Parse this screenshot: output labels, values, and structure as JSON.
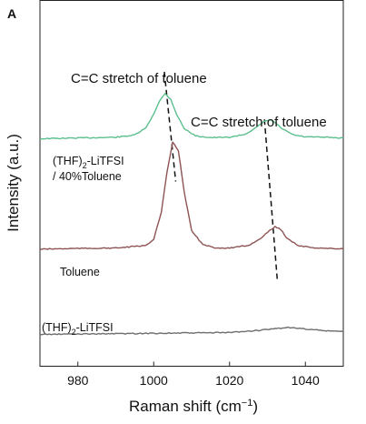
{
  "panel_label": "A",
  "chart_data": {
    "type": "line",
    "xlabel": "Raman shift (cm",
    "xlabel_sup": "−1",
    "xlabel_end": ")",
    "ylabel": "Intensity (a.u.)",
    "xlim": [
      970,
      1050
    ],
    "ylim": [
      0,
      1
    ],
    "xticks": [
      "980",
      "1000",
      "1020",
      "1040"
    ],
    "xtick_values": [
      980,
      1000,
      1020,
      1040
    ],
    "y_ticks_shown": false,
    "grid": false,
    "annotations": [
      "C=C stretch of toluene",
      "C=C stretch of toluene"
    ],
    "series": [
      {
        "name_lines": [
          {
            "pre": "(THF)",
            "sub": "2",
            "post": "-LiTFSI"
          },
          {
            "pre": "/ 40%Toluene",
            "sub": "",
            "post": ""
          }
        ],
        "color": "#5cbf8e",
        "x": [
          970,
          980,
          990,
          995,
          998,
          1000,
          1001.5,
          1003,
          1004.5,
          1006,
          1008,
          1011,
          1015,
          1020,
          1024,
          1027,
          1029,
          1030.5,
          1032,
          1034,
          1037,
          1040,
          1045,
          1050
        ],
        "y": [
          0.622,
          0.624,
          0.626,
          0.632,
          0.652,
          0.69,
          0.725,
          0.745,
          0.73,
          0.69,
          0.65,
          0.63,
          0.625,
          0.626,
          0.634,
          0.652,
          0.668,
          0.674,
          0.666,
          0.648,
          0.632,
          0.627,
          0.626,
          0.624
        ]
      },
      {
        "name_lines": [
          {
            "pre": "Toluene",
            "sub": "",
            "post": ""
          }
        ],
        "color": "#8e5454",
        "x": [
          970,
          980,
          990,
          998,
          1000,
          1002,
          1003.5,
          1005,
          1006.5,
          1008,
          1010,
          1013,
          1016,
          1020,
          1025,
          1028,
          1030.5,
          1032,
          1033.5,
          1035,
          1038,
          1042,
          1046,
          1050
        ],
        "y": [
          0.32,
          0.322,
          0.323,
          0.33,
          0.348,
          0.42,
          0.53,
          0.612,
          0.59,
          0.48,
          0.37,
          0.332,
          0.324,
          0.323,
          0.33,
          0.348,
          0.37,
          0.382,
          0.374,
          0.352,
          0.33,
          0.324,
          0.322,
          0.321
        ]
      },
      {
        "name_lines": [
          {
            "pre": "(THF)",
            "sub": "2",
            "post": "-LiTFSI"
          }
        ],
        "color": "#6e6e6e",
        "x": [
          970,
          980,
          990,
          1000,
          1010,
          1020,
          1030,
          1035,
          1040,
          1045,
          1050
        ],
        "y": [
          0.087,
          0.088,
          0.089,
          0.09,
          0.091,
          0.092,
          0.1,
          0.106,
          0.102,
          0.097,
          0.095
        ]
      }
    ],
    "guide_lines": [
      {
        "from": [
          1002.8,
          0.805
        ],
        "to": [
          1005.8,
          0.505
        ]
      },
      {
        "from": [
          1029.2,
          0.675
        ],
        "to": [
          1032.6,
          0.235
        ]
      }
    ]
  }
}
